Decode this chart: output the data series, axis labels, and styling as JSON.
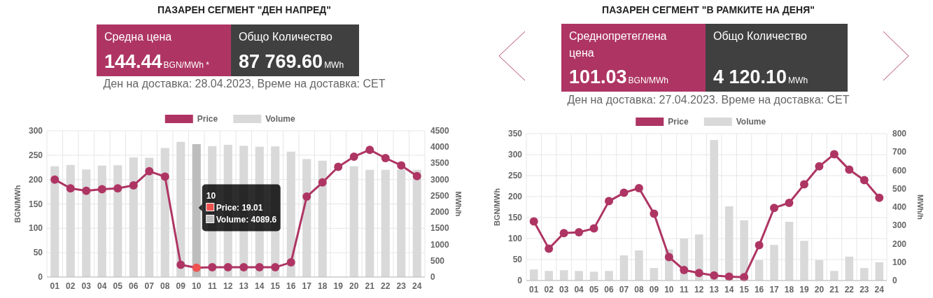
{
  "chart_data": [
    {
      "type": "bar",
      "title": "ПАЗАРЕН СЕГМЕНТ \"ДЕН НАПРЕД\"",
      "subtitle": "Ден на доставка: 28.04.2023, Време на доставка: CET",
      "annotations": [
        "Средна цена",
        "144.44",
        "BGN/MWh *",
        "Общо Количество",
        "87 769.60",
        "MWh",
        "10",
        "Price: 19.01",
        "Volume: 4089.6"
      ],
      "categories": [
        "01",
        "02",
        "03",
        "04",
        "05",
        "06",
        "07",
        "08",
        "09",
        "10",
        "11",
        "12",
        "13",
        "14",
        "15",
        "16",
        "17",
        "18",
        "19",
        "20",
        "21",
        "22",
        "23",
        "24"
      ],
      "series": [
        {
          "name": "Price",
          "type": "line",
          "color": "#ae3563",
          "colors": [
            "#ae3563",
            "#ae3563",
            "#ae3563",
            "#ae3563",
            "#ae3563",
            "#ae3563",
            "#ae3563",
            "#ae3563",
            "#ae3563",
            "#f0524f",
            "#ae3563",
            "#ae3563",
            "#ae3563",
            "#ae3563",
            "#ae3563",
            "#ae3563",
            "#ae3563",
            "#ae3563",
            "#ae3563",
            "#ae3563",
            "#ae3563",
            "#ae3563",
            "#ae3563",
            "#ae3563"
          ],
          "values": [
            200,
            182,
            177,
            180,
            182,
            188,
            217,
            206,
            25,
            19.01,
            20,
            20,
            20,
            20,
            20,
            30,
            165,
            194,
            226,
            247,
            261,
            244,
            229,
            207
          ]
        },
        {
          "name": "Volume",
          "axis": "y2",
          "color": "#d9d9d9",
          "colors": [
            "#d9d9d9",
            "#d9d9d9",
            "#d9d9d9",
            "#d9d9d9",
            "#d9d9d9",
            "#d9d9d9",
            "#d9d9d9",
            "#d9d9d9",
            "#d9d9d9",
            "#bdbdbd",
            "#d9d9d9",
            "#d9d9d9",
            "#d9d9d9",
            "#d9d9d9",
            "#d9d9d9",
            "#d9d9d9",
            "#d9d9d9",
            "#d9d9d9",
            "#d9d9d9",
            "#d9d9d9",
            "#d9d9d9",
            "#d9d9d9",
            "#d9d9d9",
            "#d9d9d9"
          ],
          "values": [
            3410,
            3450,
            3310,
            3430,
            3440,
            3680,
            3670,
            3970,
            4160,
            4089.6,
            4030,
            4070,
            4040,
            4010,
            4020,
            3860,
            3630,
            3580,
            null,
            3410,
            3300,
            3300,
            3310,
            3300
          ]
        }
      ],
      "ylabel": "BGN/MWh",
      "y2label": "MWh/h",
      "ylim": [
        0,
        300
      ],
      "yticks": [
        0,
        50,
        100,
        150,
        200,
        250,
        300
      ],
      "y2lim": [
        0,
        4500
      ],
      "y2ticks": [
        0,
        500,
        1000,
        1500,
        2000,
        2500,
        3000,
        3500,
        4000,
        4500
      ],
      "grid": true,
      "legend": "top",
      "marker": "circle"
    },
    {
      "type": "bar",
      "title": "ПАЗАРЕН СЕГМЕНТ \"В РАМКИТЕ НА ДЕНЯ\"",
      "subtitle": "Ден на доставка: 27.04.2023. Време на доставка: CET",
      "annotations": [
        "Среднопретеглена цена",
        "101.03",
        "BGN/MWh",
        "Общо Количество",
        "4 120.10",
        "MWh"
      ],
      "categories": [
        "01",
        "02",
        "03",
        "04",
        "05",
        "06",
        "07",
        "08",
        "09",
        "10",
        "11",
        "12",
        "13",
        "14",
        "15",
        "16",
        "17",
        "18",
        "19",
        "20",
        "21",
        "22",
        "23",
        "24"
      ],
      "series": [
        {
          "name": "Price",
          "type": "line",
          "color": "#ae3563",
          "values": [
            141,
            76,
            113,
            115,
            124,
            189,
            209,
            220,
            159,
            56,
            25,
            18,
            12,
            9,
            8,
            84,
            173,
            185,
            229,
            272,
            301,
            264,
            239,
            197
          ]
        },
        {
          "name": "Volume",
          "axis": "y2",
          "color": "#d9d9d9",
          "values": [
            60,
            52,
            56,
            52,
            48,
            52,
            137,
            164,
            68,
            170,
            229,
            251,
            765,
            404,
            328,
            111,
            194,
            320,
            216,
            111,
            52,
            130,
            68,
            99
          ]
        }
      ],
      "ylabel": "BGN/MWh",
      "y2label": "MWh/h",
      "ylim": [
        0,
        350
      ],
      "yticks": [
        0,
        50,
        100,
        150,
        200,
        250,
        300,
        350
      ],
      "y2lim": [
        0,
        800
      ],
      "y2ticks": [
        0,
        100,
        200,
        300,
        400,
        500,
        600,
        700,
        800
      ],
      "grid": true,
      "legend": "top",
      "marker": "circle"
    }
  ]
}
